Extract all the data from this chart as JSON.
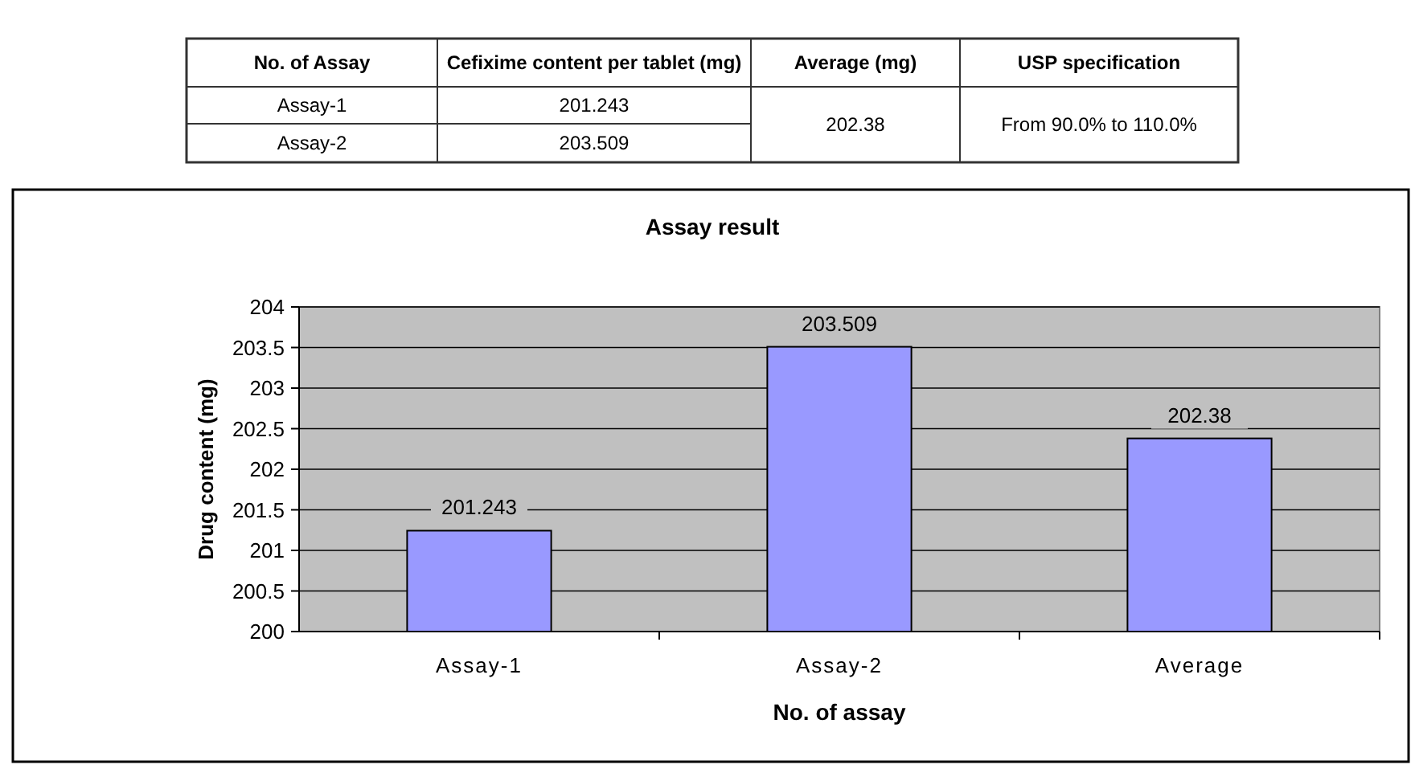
{
  "chart_data": {
    "type": "bar",
    "title": "Assay result",
    "xlabel": "No. of assay",
    "ylabel": "Drug content (mg)",
    "categories": [
      "Assay-1",
      "Assay-2",
      "Average"
    ],
    "values": [
      201.243,
      203.509,
      202.38
    ],
    "color": "#9999ff",
    "ylim": [
      200,
      204
    ],
    "yticks": [
      200,
      200.5,
      201,
      201.5,
      202,
      202.5,
      203,
      203.5,
      204
    ],
    "grid": "y",
    "data_labels": true,
    "annotations": [
      "No. of Assay",
      "Cefixime content per tablet (mg)",
      "Average  (mg)",
      "USP specification",
      "Assay-1",
      "201.243",
      "Assay-2",
      "203.509",
      "202.38",
      "From 90.0% to 110.0%"
    ]
  }
}
